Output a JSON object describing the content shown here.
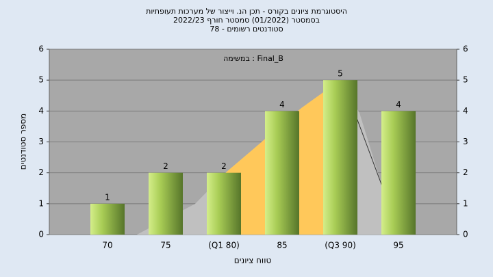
{
  "chart_data": {
    "type": "bar",
    "title": "היסטוגרמת ציונים בקורס - תכן הנ. וייצור של מערכות תעופתיות",
    "subtitle": "בסמסטר  (01/2022)  סמסטר חורף 2022/23",
    "subtitle2": "סטודנטים רשומים - 78",
    "annotation": "במשימה : Final_B",
    "x_label": "טווח ציונים",
    "y_label": "מספר סטודנטים",
    "categories": [
      "70",
      "75",
      "(Q1 80)",
      "85",
      "(Q3 90)",
      "95"
    ],
    "values": [
      1,
      2,
      2,
      4,
      5,
      4
    ],
    "color": "#8fb443",
    "ylim": [
      0,
      6
    ],
    "yticks": [
      0,
      1,
      2,
      3,
      4,
      5,
      6
    ],
    "y2lim": [
      0,
      6
    ],
    "y2ticks": [
      0,
      1,
      2,
      3,
      4,
      5,
      6
    ],
    "grid": true
  }
}
